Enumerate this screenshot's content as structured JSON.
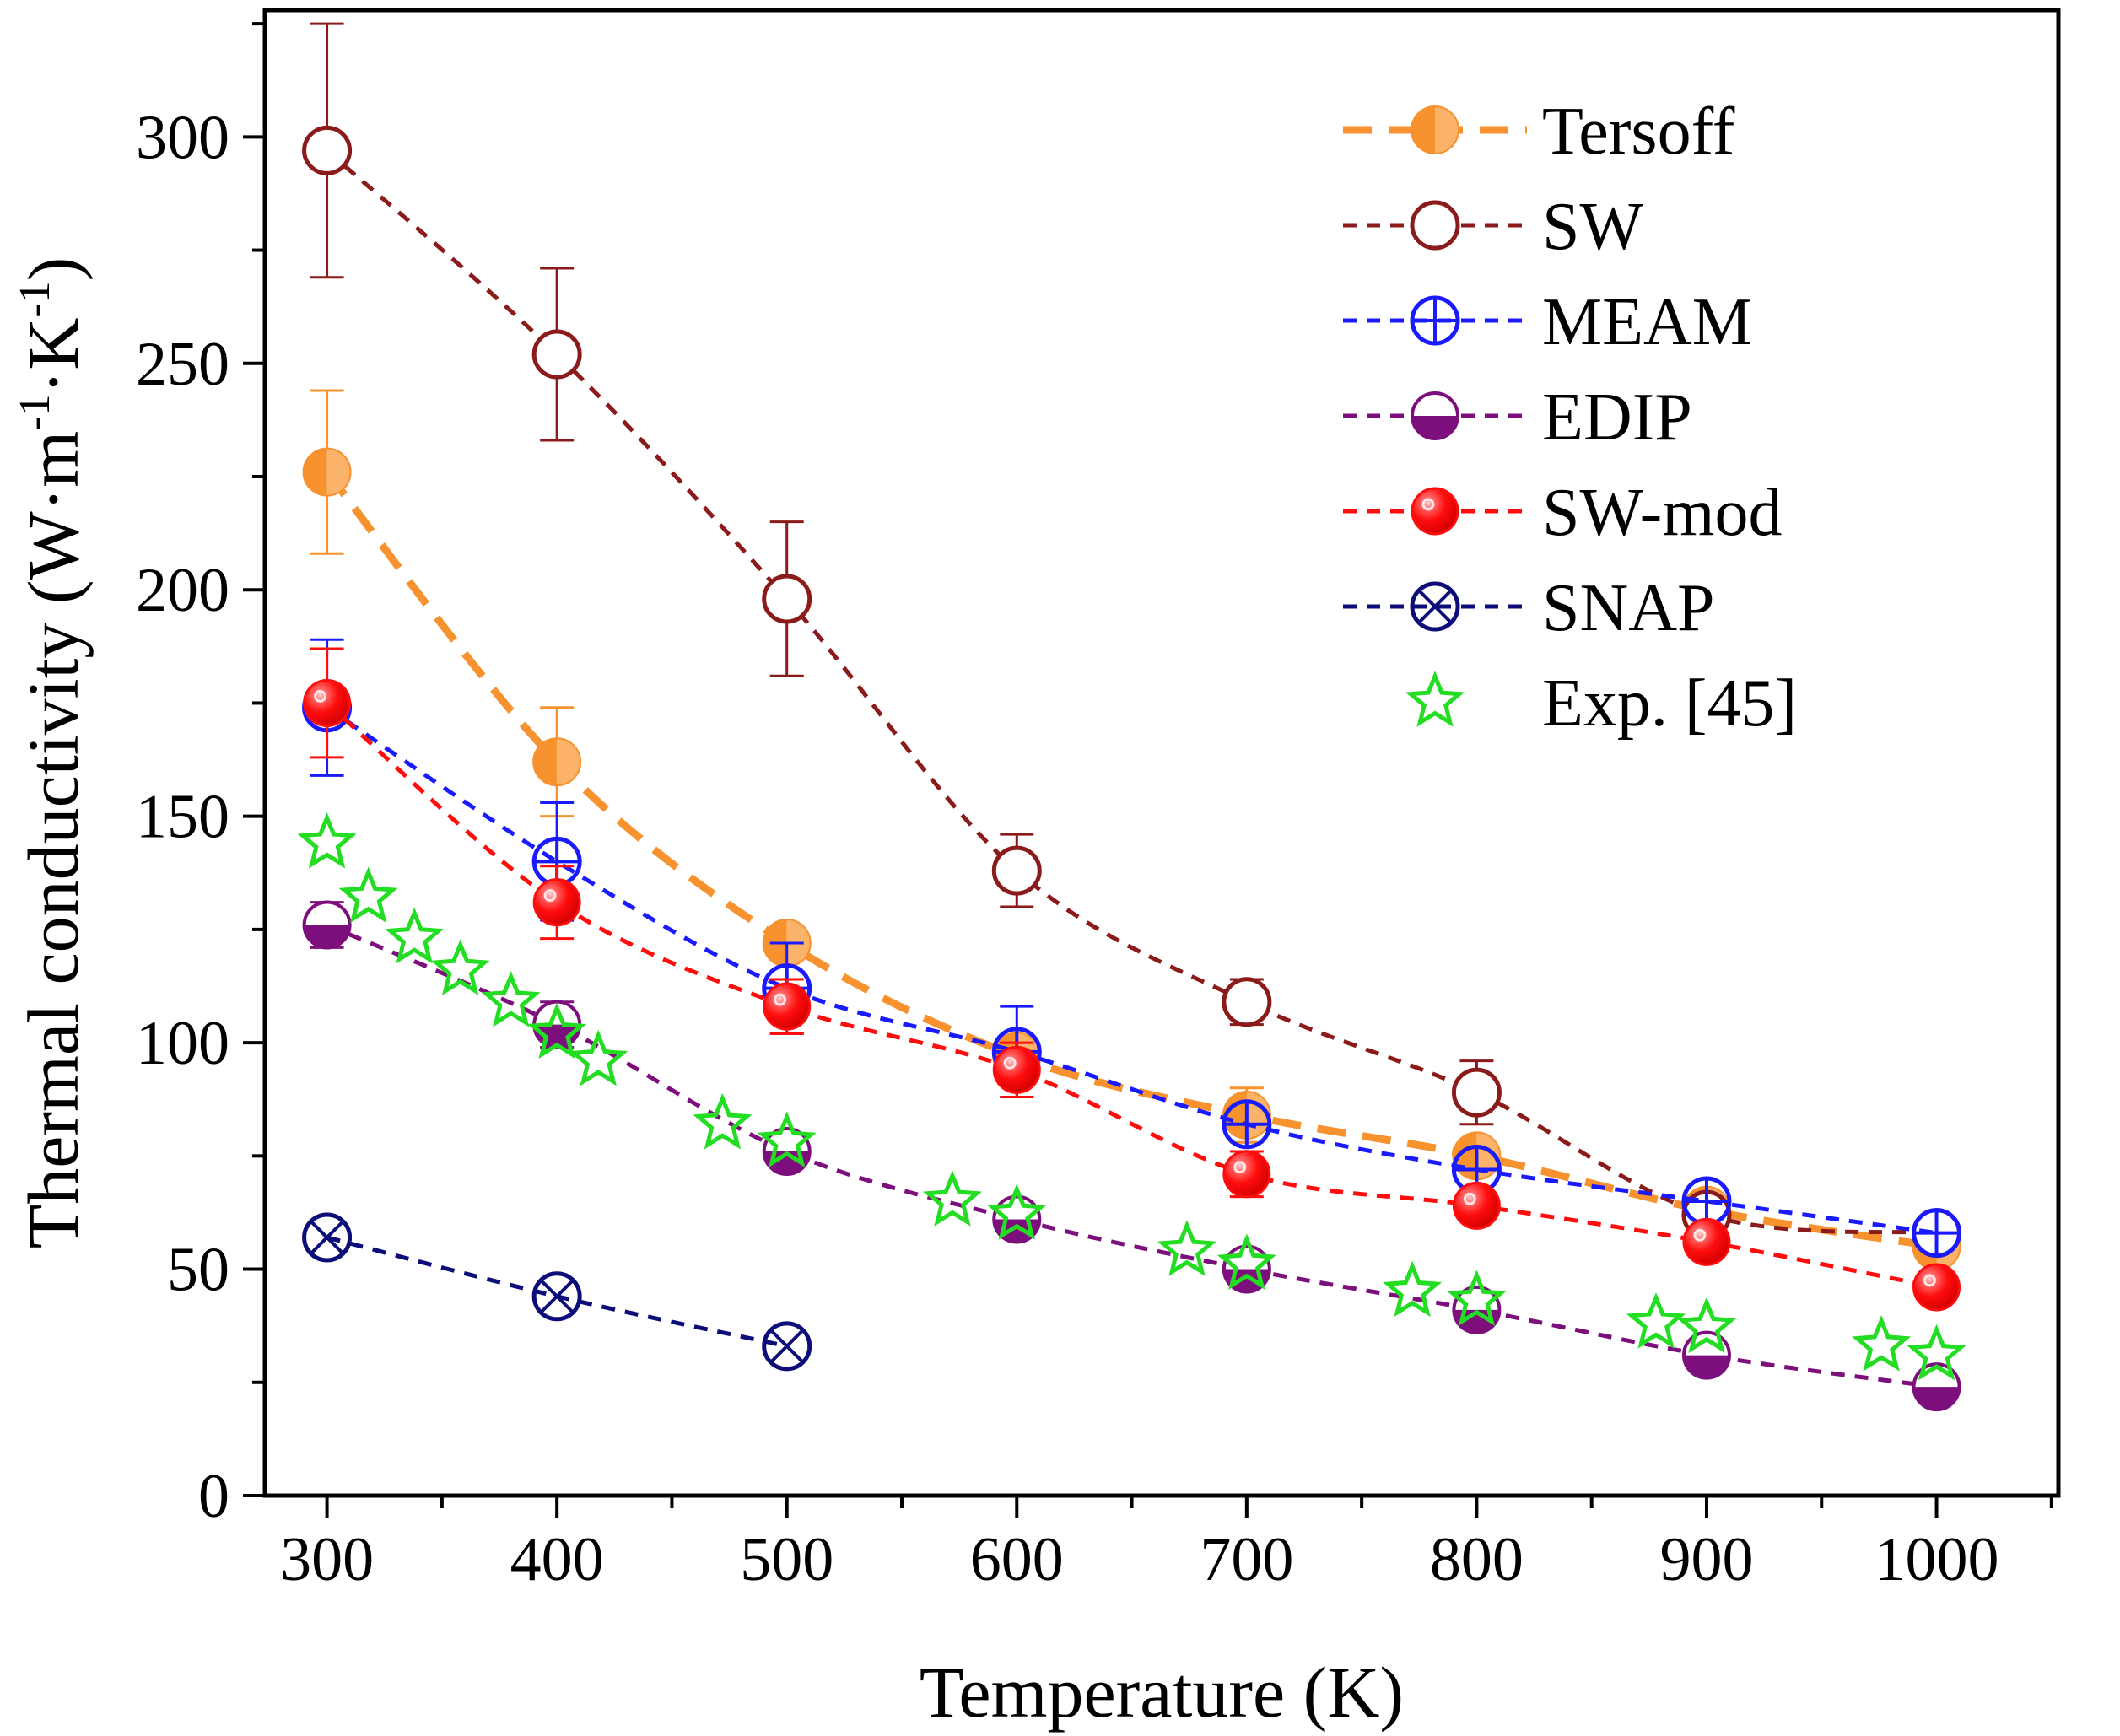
{
  "chart_data": {
    "type": "line",
    "title": "",
    "xlabel": "Temperature (K)",
    "ylabel": "Thermal conductivity (W·m⁻¹·K⁻¹)",
    "ylabel_parts": [
      "Thermal conductivity (W·m",
      "-1",
      "·K",
      "-1",
      ")"
    ],
    "xlim": [
      273,
      1053
    ],
    "ylim": [
      0,
      328
    ],
    "xticks": [
      300,
      400,
      500,
      600,
      700,
      800,
      900,
      1000
    ],
    "yticks": [
      0,
      50,
      100,
      150,
      200,
      250,
      300
    ],
    "x_minor_step": 50,
    "y_minor_step": 25,
    "grid": false,
    "legend_position": "top-right",
    "series": [
      {
        "name": "Tersoff",
        "color": "#f7922f",
        "marker": "half-circle-left",
        "line": "dashed-thick",
        "x": [
          300,
          400,
          500,
          600,
          700,
          800,
          900,
          1000
        ],
        "y": [
          226,
          162,
          122,
          97,
          84,
          75,
          63,
          55
        ],
        "err": [
          18,
          12,
          0,
          0,
          6,
          0,
          0,
          0
        ]
      },
      {
        "name": "SW",
        "color": "#8b1a1a",
        "marker": "open-circle",
        "line": "dashed",
        "x": [
          300,
          400,
          500,
          600,
          700,
          800,
          900,
          1000
        ],
        "y": [
          297,
          252,
          198,
          138,
          109,
          89,
          62,
          58
        ],
        "err": [
          28,
          19,
          17,
          8,
          5,
          7,
          0,
          0
        ]
      },
      {
        "name": "MEAM",
        "color": "#1a1aff",
        "marker": "circle-plus",
        "line": "dashed",
        "x": [
          300,
          400,
          500,
          600,
          700,
          800,
          900,
          1000
        ],
        "y": [
          174,
          140,
          112,
          98,
          82,
          72,
          65,
          58
        ],
        "err": [
          15,
          13,
          10,
          10,
          0,
          0,
          0,
          0
        ]
      },
      {
        "name": "EDIP",
        "color": "#7d0f7d",
        "marker": "half-circle-bottom",
        "line": "dashed",
        "x": [
          300,
          400,
          500,
          600,
          700,
          800,
          900,
          1000
        ],
        "y": [
          126,
          104,
          76,
          61,
          50,
          41,
          31,
          24
        ],
        "err": [
          5,
          5,
          0,
          0,
          0,
          0,
          0,
          0
        ]
      },
      {
        "name": "SW-mod",
        "color": "#ff0d0d",
        "marker": "filled-circle-shiny",
        "line": "dashed",
        "x": [
          300,
          400,
          500,
          600,
          700,
          800,
          900,
          1000
        ],
        "y": [
          175,
          131,
          108,
          94,
          71,
          64,
          56,
          46
        ],
        "err": [
          12,
          8,
          6,
          6,
          5,
          0,
          0,
          0
        ]
      },
      {
        "name": "SNAP",
        "color": "#0d0d7a",
        "marker": "circle-x",
        "line": "dashed",
        "x": [
          300,
          400,
          500
        ],
        "y": [
          57,
          44,
          33
        ],
        "err": [
          0,
          0,
          0
        ]
      },
      {
        "name": "Exp. [45]",
        "color": "#22dd22",
        "marker": "open-star",
        "line": "none",
        "x": [
          300,
          318,
          338,
          358,
          380,
          400,
          418,
          472,
          500,
          572,
          600,
          674,
          700,
          772,
          800,
          878,
          900,
          976,
          1000
        ],
        "y": [
          144,
          132,
          123,
          116,
          109,
          102,
          96,
          82,
          78,
          65,
          62,
          54,
          51,
          45,
          43,
          38,
          37,
          33,
          31
        ],
        "err": []
      }
    ]
  }
}
